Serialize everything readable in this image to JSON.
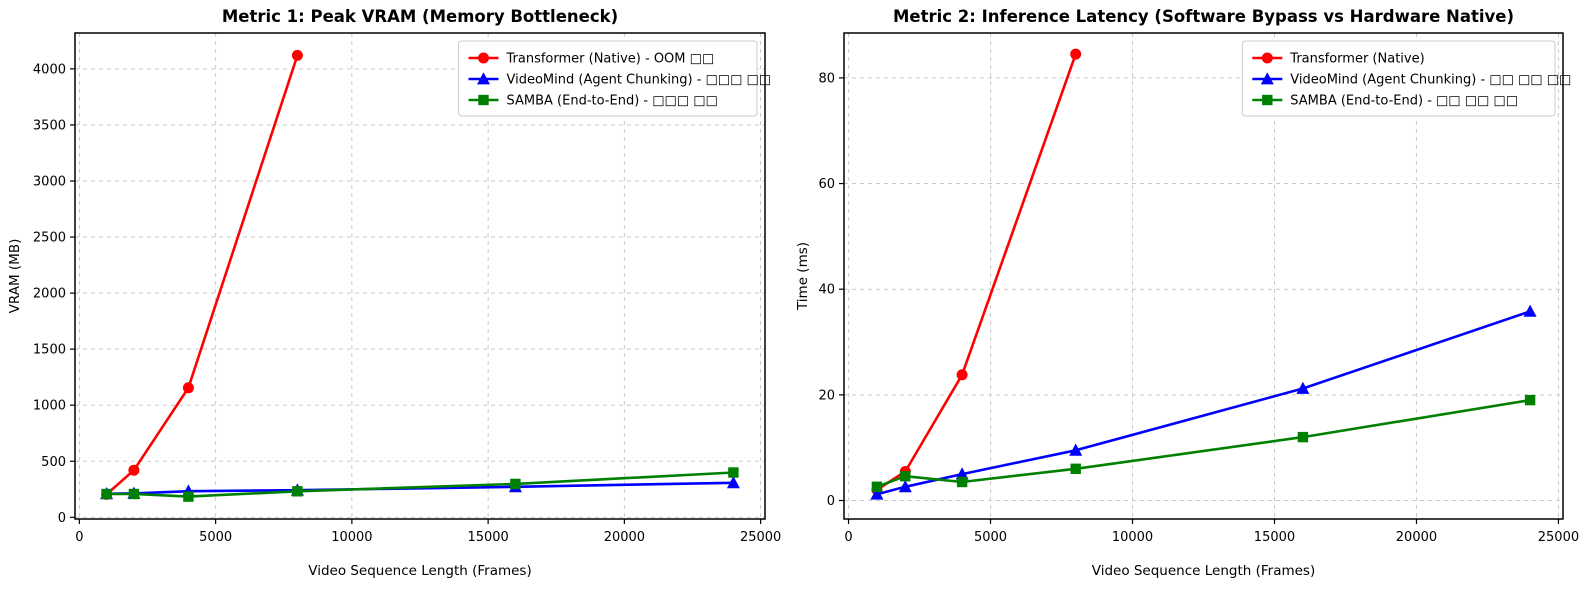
{
  "page": {
    "background": "#ffffff"
  },
  "chart_data": [
    {
      "type": "line",
      "title": "Metric 1: Peak VRAM (Memory Bottleneck)",
      "xlabel": "Video Sequence Length (Frames)",
      "ylabel": "VRAM (MB)",
      "xlim": [
        -160,
        25160
      ],
      "ylim": [
        -15,
        4320
      ],
      "xticks": [
        0,
        5000,
        10000,
        15000,
        20000,
        25000
      ],
      "yticks": [
        0,
        500,
        1000,
        1500,
        2000,
        2500,
        3000,
        3500,
        4000
      ],
      "grid": true,
      "grid_style": "dashed",
      "legend_position": "upper-right",
      "series": [
        {
          "name": "Transformer (Native) - OOM □□",
          "color": "#ff0000",
          "marker": "circle",
          "x": [
            1000,
            2000,
            4000,
            8000
          ],
          "y": [
            205,
            420,
            1155,
            4120
          ]
        },
        {
          "name": "VideoMind (Agent Chunking) - □□□ □□",
          "color": "#0000ff",
          "marker": "triangle",
          "x": [
            1000,
            2000,
            4000,
            8000,
            16000,
            24000
          ],
          "y": [
            210,
            213,
            233,
            242,
            272,
            308
          ]
        },
        {
          "name": "SAMBA (End-to-End) - □□□ □□",
          "color": "#008000",
          "marker": "square",
          "x": [
            1000,
            2000,
            4000,
            8000,
            16000,
            24000
          ],
          "y": [
            208,
            208,
            185,
            232,
            298,
            400
          ]
        }
      ],
      "layout": {
        "margin_left": 75,
        "margin_right": 29,
        "margin_top": 33,
        "margin_bottom": 71,
        "ylabel_offset": 56
      }
    },
    {
      "type": "line",
      "title": "Metric 2: Inference Latency (Software Bypass vs Hardware Native)",
      "xlabel": "Video Sequence Length (Frames)",
      "ylabel": "Time (ms)",
      "xlim": [
        -160,
        25160
      ],
      "ylim": [
        -3.5,
        88.5
      ],
      "xticks": [
        0,
        5000,
        10000,
        15000,
        20000,
        25000
      ],
      "yticks": [
        0,
        20,
        40,
        60,
        80
      ],
      "grid": true,
      "grid_style": "dashed",
      "legend_position": "upper-right",
      "series": [
        {
          "name": "Transformer (Native)",
          "color": "#ff0000",
          "marker": "circle",
          "x": [
            1000,
            2000,
            4000,
            8000
          ],
          "y": [
            2.0,
            5.5,
            23.8,
            84.5
          ]
        },
        {
          "name": "VideoMind (Agent Chunking) - □□ □□ □□",
          "color": "#0000ff",
          "marker": "triangle",
          "x": [
            1000,
            2000,
            4000,
            8000,
            16000,
            24000
          ],
          "y": [
            1.2,
            2.6,
            5.0,
            9.5,
            21.2,
            35.8
          ]
        },
        {
          "name": "SAMBA (End-to-End) - □□ □□ □□",
          "color": "#008000",
          "marker": "square",
          "x": [
            1000,
            2000,
            4000,
            8000,
            16000,
            24000
          ],
          "y": [
            2.6,
            4.6,
            3.5,
            6.0,
            12.0,
            19.0
          ]
        }
      ],
      "layout": {
        "margin_left": 50,
        "margin_right": 26,
        "margin_top": 33,
        "margin_bottom": 71,
        "ylabel_offset": 37
      }
    }
  ]
}
